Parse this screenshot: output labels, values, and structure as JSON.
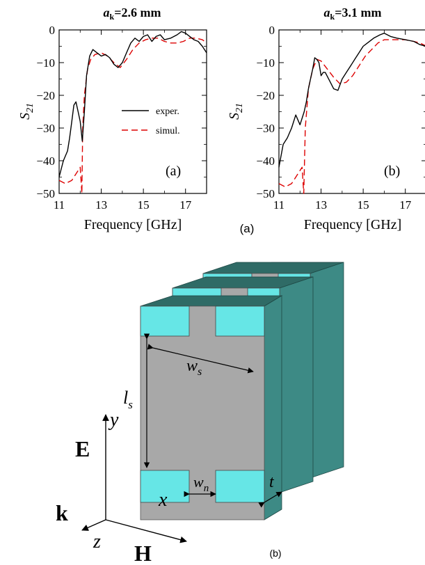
{
  "part_a": {
    "caption": "(a)",
    "plots": [
      {
        "title_symbol": "a",
        "title_subscript": "k",
        "title_value": "=2.6 mm",
        "panel_label": "(a)",
        "ylabel_main": "S",
        "ylabel_sub": "21",
        "xlabel": "Frequency [GHz]",
        "x_ticks": [
          "11",
          "13",
          "15",
          "17"
        ],
        "y_ticks": [
          "0",
          "−10",
          "−20",
          "−30",
          "−40",
          "−50"
        ],
        "legend": [
          {
            "label": "exper.",
            "color": "#000000",
            "style": "solid"
          },
          {
            "label": "simul.",
            "color": "#dd0000",
            "style": "dashed"
          }
        ]
      },
      {
        "title_symbol": "a",
        "title_subscript": "k",
        "title_value": "=3.1 mm",
        "panel_label": "(b)",
        "ylabel_main": "S",
        "ylabel_sub": "21",
        "xlabel": "Frequency [GHz]",
        "x_ticks": [
          "11",
          "13",
          "15",
          "17"
        ],
        "y_ticks": [
          "0",
          "−10",
          "−20",
          "−30",
          "−40",
          "−50"
        ]
      }
    ]
  },
  "chart_data": [
    {
      "type": "line",
      "title": "a_k=2.6 mm",
      "xlabel": "Frequency [GHz]",
      "ylabel": "S21",
      "xlim": [
        11,
        18
      ],
      "ylim": [
        -50,
        0
      ],
      "legend_position": "middle-right",
      "series": [
        {
          "name": "exper.",
          "color": "#000000",
          "style": "solid",
          "x": [
            11.0,
            11.2,
            11.4,
            11.5,
            11.6,
            11.7,
            11.8,
            11.9,
            12.0,
            12.1,
            12.2,
            12.3,
            12.45,
            12.6,
            12.8,
            13.0,
            13.2,
            13.4,
            13.6,
            13.8,
            14.0,
            14.2,
            14.4,
            14.6,
            14.8,
            15.0,
            15.2,
            15.4,
            15.6,
            15.8,
            16.0,
            16.3,
            16.6,
            16.8,
            17.0,
            17.2,
            17.4,
            17.6,
            17.8,
            18.0
          ],
          "y": [
            -45,
            -40,
            -37,
            -33,
            -28,
            -23,
            -22,
            -25,
            -28,
            -34,
            -25,
            -14,
            -8,
            -6,
            -7,
            -8,
            -7.5,
            -8.5,
            -10.5,
            -11.5,
            -10,
            -7,
            -4,
            -2.5,
            -3.5,
            -2,
            -1.5,
            -3.5,
            -2,
            -1.5,
            -3,
            -2.5,
            -1.5,
            -0.5,
            -1,
            -2,
            -3,
            -3.5,
            -5,
            -7
          ]
        },
        {
          "name": "simul.",
          "color": "#dd0000",
          "style": "dashed",
          "x": [
            11.0,
            11.3,
            11.6,
            11.9,
            12.0,
            12.08,
            12.12,
            12.2,
            12.35,
            12.5,
            12.7,
            13.0,
            13.3,
            13.6,
            13.9,
            14.2,
            14.5,
            14.8,
            15.1,
            15.4,
            15.7,
            16.0,
            16.3,
            16.6,
            16.9,
            17.2,
            17.5,
            17.8,
            18.0
          ],
          "y": [
            -46,
            -47,
            -46,
            -43,
            -42,
            -50,
            -30,
            -20,
            -12,
            -9,
            -7.5,
            -7,
            -8,
            -10,
            -11.5,
            -9,
            -6,
            -4,
            -3,
            -2.5,
            -2.5,
            -3.5,
            -4,
            -4,
            -3.5,
            -2.5,
            -2.5,
            -3,
            -4
          ]
        }
      ]
    },
    {
      "type": "line",
      "title": "a_k=3.1 mm",
      "xlabel": "Frequency [GHz]",
      "ylabel": "S21",
      "xlim": [
        11,
        18
      ],
      "ylim": [
        -50,
        0
      ],
      "series": [
        {
          "name": "exper.",
          "color": "#000000",
          "style": "solid",
          "x": [
            11.0,
            11.2,
            11.4,
            11.6,
            11.8,
            12.0,
            12.2,
            12.3,
            12.4,
            12.5,
            12.6,
            12.7,
            12.8,
            12.9,
            13.0,
            13.1,
            13.2,
            13.4,
            13.6,
            13.8,
            14.0,
            14.2,
            14.4,
            14.6,
            14.8,
            15.0,
            15.2,
            15.5,
            15.8,
            16.0,
            16.3,
            16.6,
            17.0,
            17.4,
            17.7,
            18.0
          ],
          "y": [
            -42,
            -35,
            -33,
            -30,
            -26,
            -29,
            -25,
            -22,
            -18,
            -15,
            -12,
            -8.5,
            -9,
            -10,
            -14,
            -13,
            -13,
            -15.5,
            -18,
            -18.5,
            -15,
            -13,
            -11,
            -9,
            -7,
            -5,
            -4,
            -2.5,
            -1.5,
            -1,
            -2,
            -2.5,
            -3,
            -3.5,
            -4.5,
            -5
          ]
        },
        {
          "name": "simul.",
          "color": "#dd0000",
          "style": "dashed",
          "x": [
            11.0,
            11.3,
            11.6,
            11.9,
            12.1,
            12.18,
            12.25,
            12.4,
            12.6,
            12.8,
            13.0,
            13.3,
            13.6,
            13.9,
            14.2,
            14.5,
            14.8,
            15.1,
            15.4,
            15.7,
            16.0,
            16.3,
            16.6,
            17.0,
            17.4,
            17.7,
            18.0
          ],
          "y": [
            -47,
            -48,
            -47,
            -44,
            -42,
            -50,
            -30,
            -18,
            -12,
            -9,
            -9.5,
            -12,
            -14.5,
            -16.5,
            -16,
            -14,
            -11,
            -8,
            -6,
            -4,
            -3,
            -3,
            -3,
            -3,
            -3.5,
            -4,
            -5
          ]
        }
      ]
    }
  ],
  "part_b": {
    "caption": "(b)",
    "dimension_labels": {
      "ws_main": "w",
      "ws_sub": "s",
      "ls_main": "l",
      "ls_sub": "s",
      "wn_main": "w",
      "wn_sub": "n",
      "t": "t"
    },
    "axes_labels": {
      "y": "y",
      "x": "x",
      "z": "z"
    },
    "field_labels": {
      "E": "E",
      "k": "k",
      "H": "H"
    },
    "colors": {
      "cyan_face": "#66e6e6",
      "dark_top": "#2f6b66",
      "side_teal": "#3d8a85",
      "gray_face": "#a8a8a8"
    }
  }
}
